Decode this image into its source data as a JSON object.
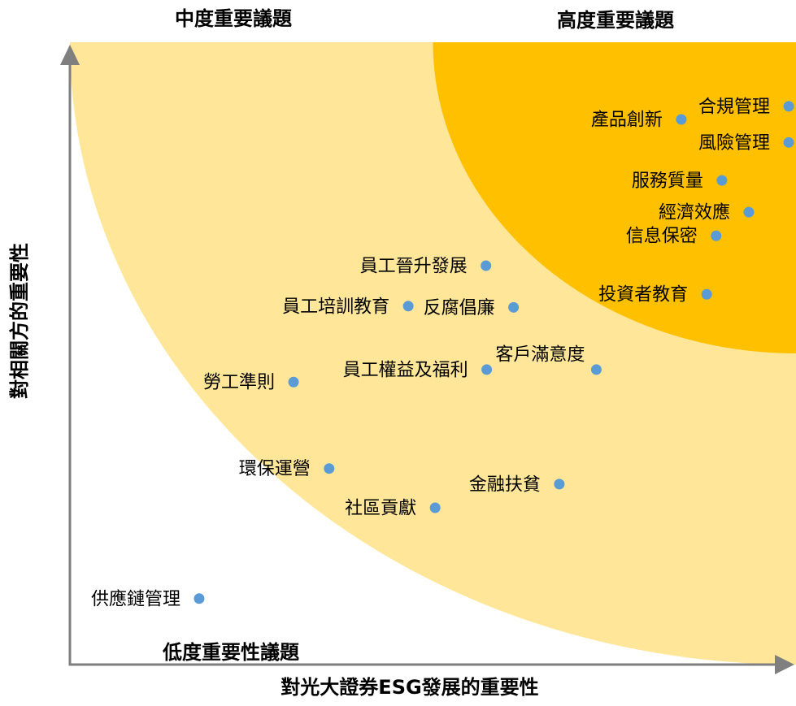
{
  "chart_data": {
    "type": "scatter",
    "title": "",
    "xlabel": "對光大證券ESG發展的重要性",
    "ylabel": "對相關方的重要性",
    "xlim": [
      0,
      100
    ],
    "ylim": [
      0,
      100
    ],
    "grid": false,
    "zones": [
      {
        "name": "中度重要議題",
        "label_position": "top-left",
        "center": [
          100,
          100
        ],
        "radius": 100,
        "color": "#FFE699"
      },
      {
        "name": "高度重要議題",
        "label_position": "top-right",
        "center": [
          100,
          100
        ],
        "radius": 50,
        "color": "#FFC000"
      },
      {
        "name": "低度重要性議題",
        "label_position": "bottom-left",
        "center": null,
        "radius": null,
        "color": "#FFFFFF"
      }
    ],
    "points": [
      {
        "label": "合規管理",
        "x": 99.0,
        "y": 89.7,
        "label_side": "left"
      },
      {
        "label": "產品創新",
        "x": 84.2,
        "y": 87.6,
        "label_side": "left"
      },
      {
        "label": "風險管理",
        "x": 99.0,
        "y": 83.9,
        "label_side": "left"
      },
      {
        "label": "服務質量",
        "x": 89.8,
        "y": 77.8,
        "label_side": "left"
      },
      {
        "label": "經濟效應",
        "x": 93.5,
        "y": 72.7,
        "label_side": "left"
      },
      {
        "label": "信息保密",
        "x": 89.0,
        "y": 68.9,
        "label_side": "left"
      },
      {
        "label": "員工晉升發展",
        "x": 57.3,
        "y": 64.1,
        "label_side": "left"
      },
      {
        "label": "投資者教育",
        "x": 87.7,
        "y": 59.5,
        "label_side": "left"
      },
      {
        "label": "員工培訓教育",
        "x": 46.6,
        "y": 57.6,
        "label_side": "left"
      },
      {
        "label": "反腐倡廉",
        "x": 61.1,
        "y": 57.4,
        "label_side": "left"
      },
      {
        "label": "客戶滿意度",
        "x": 72.5,
        "y": 47.4,
        "label_side": "above-left"
      },
      {
        "label": "員工權益及福利",
        "x": 57.4,
        "y": 47.4,
        "label_side": "left"
      },
      {
        "label": "勞工準則",
        "x": 30.8,
        "y": 45.4,
        "label_side": "left"
      },
      {
        "label": "環保運營",
        "x": 35.7,
        "y": 31.5,
        "label_side": "left"
      },
      {
        "label": "金融扶貧",
        "x": 67.4,
        "y": 29.0,
        "label_side": "left"
      },
      {
        "label": "社區貢獻",
        "x": 50.3,
        "y": 25.2,
        "label_side": "left"
      },
      {
        "label": "供應鏈管理",
        "x": 17.8,
        "y": 10.6,
        "label_side": "left"
      }
    ]
  },
  "colors": {
    "axis": "#7F7F7F",
    "point": "#5B9BD5",
    "text": "#000000",
    "background": "#FFFFFF"
  }
}
